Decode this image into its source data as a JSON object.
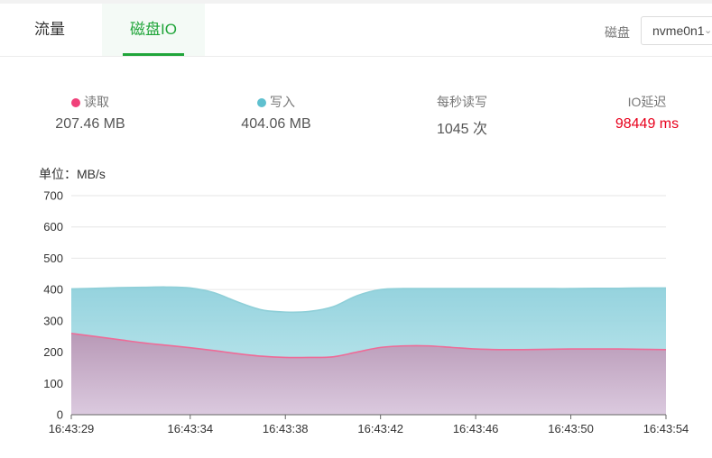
{
  "tabs": [
    {
      "label": "流量",
      "active": false
    },
    {
      "label": "磁盘IO",
      "active": true
    }
  ],
  "disk": {
    "label": "磁盘",
    "selected": "nvme0n1",
    "chevron_icon": "chevron-down-icon"
  },
  "stats": [
    {
      "label": "读取",
      "value": "207.46 MB",
      "dot_color": "#f0417a"
    },
    {
      "label": "写入",
      "value": "404.06 MB",
      "dot_color": "#5fc0cf"
    },
    {
      "label": "每秒读写",
      "value": "1045 次"
    },
    {
      "label": "IO延迟",
      "value": "98449 ms",
      "value_color": "#e8001c"
    }
  ],
  "chart_data": {
    "type": "area",
    "unit_label": "单位：MB/s",
    "x": [
      "16:43:29",
      "16:43:30",
      "16:43:31",
      "16:43:32",
      "16:43:33",
      "16:43:34",
      "16:43:35",
      "16:43:36",
      "16:43:37",
      "16:43:38",
      "16:43:39",
      "16:43:40",
      "16:43:41",
      "16:43:42",
      "16:43:43",
      "16:43:44",
      "16:43:45",
      "16:43:46",
      "16:43:47",
      "16:43:48",
      "16:43:49",
      "16:43:50",
      "16:43:51",
      "16:43:52",
      "16:43:53",
      "16:43:54"
    ],
    "x_tick_labels": [
      "16:43:29",
      "16:43:34",
      "16:43:38",
      "16:43:42",
      "16:43:46",
      "16:43:50",
      "16:43:54"
    ],
    "ylim": [
      0,
      700
    ],
    "y_ticks": [
      0,
      100,
      200,
      300,
      400,
      500,
      600,
      700
    ],
    "grid": true,
    "series": [
      {
        "name": "读取",
        "color": "#f0417a",
        "values": [
          260,
          250,
          240,
          230,
          222,
          214,
          205,
          195,
          187,
          183,
          183,
          185,
          200,
          215,
          220,
          220,
          215,
          210,
          208,
          208,
          209,
          210,
          210,
          210,
          209,
          208
        ]
      },
      {
        "name": "写入",
        "color": "#5fc0cf",
        "values": [
          402,
          404,
          406,
          407,
          408,
          405,
          390,
          360,
          335,
          328,
          330,
          345,
          380,
          400,
          403,
          403,
          403,
          403,
          403,
          403,
          403,
          403,
          404,
          404,
          405,
          405
        ]
      }
    ]
  }
}
